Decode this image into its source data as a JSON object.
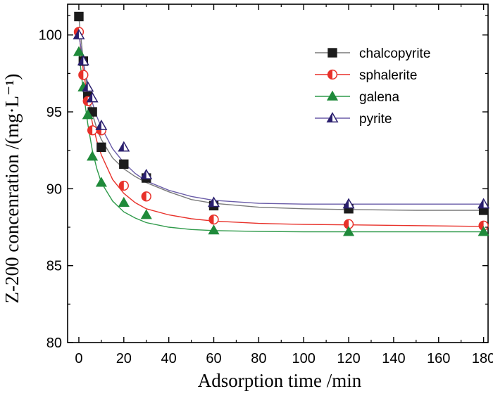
{
  "chart_data": {
    "type": "scatter",
    "xlabel": "Adsorption time /min",
    "ylabel": "Z-200 concenration /(mg·L⁻¹)",
    "xlim": [
      -5,
      182
    ],
    "ylim": [
      80,
      102
    ],
    "xticks": [
      0,
      20,
      40,
      60,
      80,
      100,
      120,
      140,
      160,
      180
    ],
    "yticks": [
      80,
      85,
      90,
      95,
      100
    ],
    "legend_position": "top-right",
    "series": [
      {
        "name": "chalcopyrite",
        "marker": "square",
        "color": "#1c1c1c",
        "line_color": "#7a7a7a",
        "points": [
          [
            0,
            101.2
          ],
          [
            2,
            98.3
          ],
          [
            4,
            96.0
          ],
          [
            6,
            95.0
          ],
          [
            10,
            92.7
          ],
          [
            20,
            91.6
          ],
          [
            30,
            90.7
          ],
          [
            60,
            88.9
          ],
          [
            120,
            88.7
          ],
          [
            180,
            88.6
          ]
        ],
        "fit": [
          [
            0,
            101.1
          ],
          [
            1,
            99.7
          ],
          [
            2,
            98.3
          ],
          [
            4,
            96.3
          ],
          [
            6,
            94.9
          ],
          [
            8,
            93.9
          ],
          [
            10,
            93.2
          ],
          [
            15,
            92.0
          ],
          [
            20,
            91.3
          ],
          [
            25,
            90.8
          ],
          [
            30,
            90.4
          ],
          [
            40,
            89.8
          ],
          [
            50,
            89.3
          ],
          [
            60,
            89.05
          ],
          [
            80,
            88.8
          ],
          [
            100,
            88.7
          ],
          [
            120,
            88.65
          ],
          [
            150,
            88.6
          ],
          [
            180,
            88.6
          ]
        ]
      },
      {
        "name": "sphalerite",
        "marker": "half-circle",
        "color": "#e8312a",
        "line_color": "#e8312a",
        "points": [
          [
            0,
            100.2
          ],
          [
            2,
            97.4
          ],
          [
            4,
            95.7
          ],
          [
            6,
            93.8
          ],
          [
            10,
            93.8
          ],
          [
            20,
            90.2
          ],
          [
            30,
            89.5
          ],
          [
            60,
            88.0
          ],
          [
            120,
            87.7
          ],
          [
            180,
            87.6
          ]
        ],
        "fit": [
          [
            0,
            100.2
          ],
          [
            1,
            98.9
          ],
          [
            2,
            97.7
          ],
          [
            4,
            95.8
          ],
          [
            6,
            94.3
          ],
          [
            8,
            93.1
          ],
          [
            10,
            92.2
          ],
          [
            15,
            90.6
          ],
          [
            20,
            89.7
          ],
          [
            25,
            89.1
          ],
          [
            30,
            88.7
          ],
          [
            40,
            88.3
          ],
          [
            50,
            88.05
          ],
          [
            60,
            87.9
          ],
          [
            80,
            87.75
          ],
          [
            100,
            87.68
          ],
          [
            120,
            87.65
          ],
          [
            150,
            87.6
          ],
          [
            180,
            87.55
          ]
        ]
      },
      {
        "name": "galena",
        "marker": "triangle",
        "color": "#1f8a3a",
        "line_color": "#2f9a4a",
        "points": [
          [
            0,
            98.9
          ],
          [
            2,
            96.6
          ],
          [
            4,
            94.8
          ],
          [
            6,
            92.1
          ],
          [
            10,
            90.4
          ],
          [
            20,
            89.1
          ],
          [
            30,
            88.3
          ],
          [
            60,
            87.3
          ],
          [
            120,
            87.2
          ],
          [
            180,
            87.2
          ]
        ],
        "fit": [
          [
            0,
            98.9
          ],
          [
            1,
            97.6
          ],
          [
            2,
            96.3
          ],
          [
            4,
            94.2
          ],
          [
            6,
            92.5
          ],
          [
            8,
            91.3
          ],
          [
            10,
            90.4
          ],
          [
            15,
            89.2
          ],
          [
            20,
            88.5
          ],
          [
            25,
            88.1
          ],
          [
            30,
            87.8
          ],
          [
            40,
            87.5
          ],
          [
            50,
            87.35
          ],
          [
            60,
            87.28
          ],
          [
            80,
            87.22
          ],
          [
            100,
            87.2
          ],
          [
            120,
            87.2
          ],
          [
            150,
            87.2
          ],
          [
            180,
            87.2
          ]
        ]
      },
      {
        "name": "pyrite",
        "marker": "half-triangle",
        "color": "#2a1f6e",
        "line_color": "#6a5ca8",
        "points": [
          [
            0,
            100.0
          ],
          [
            2,
            98.3
          ],
          [
            4,
            96.6
          ],
          [
            6,
            95.9
          ],
          [
            10,
            94.1
          ],
          [
            20,
            92.7
          ],
          [
            30,
            90.9
          ],
          [
            60,
            89.1
          ],
          [
            120,
            89.0
          ],
          [
            180,
            89.0
          ]
        ],
        "fit": [
          [
            0,
            100.0
          ],
          [
            1,
            99.1
          ],
          [
            2,
            98.2
          ],
          [
            4,
            96.8
          ],
          [
            6,
            95.6
          ],
          [
            8,
            94.7
          ],
          [
            10,
            94.0
          ],
          [
            15,
            92.6
          ],
          [
            20,
            91.7
          ],
          [
            25,
            91.0
          ],
          [
            30,
            90.5
          ],
          [
            40,
            89.9
          ],
          [
            50,
            89.5
          ],
          [
            60,
            89.25
          ],
          [
            80,
            89.05
          ],
          [
            100,
            89.0
          ],
          [
            120,
            89.0
          ],
          [
            150,
            89.0
          ],
          [
            180,
            89.0
          ]
        ]
      }
    ]
  }
}
